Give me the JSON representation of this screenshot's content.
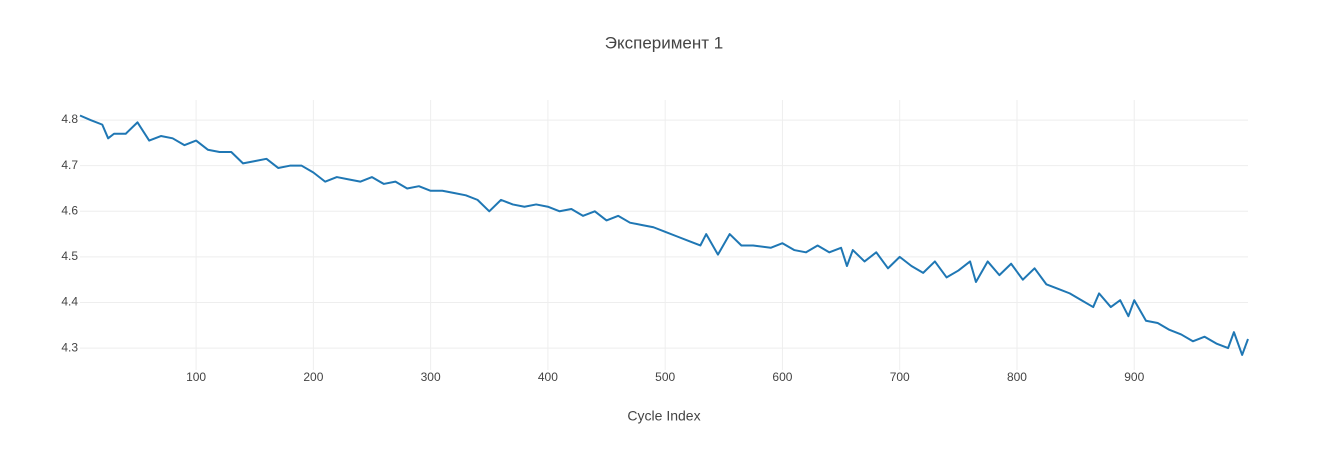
{
  "chart_data": {
    "type": "line",
    "title": "Эксперимент 1",
    "x_label": "Cycle Index",
    "x": [
      1,
      10,
      20,
      25,
      30,
      40,
      50,
      60,
      70,
      80,
      90,
      100,
      110,
      120,
      130,
      140,
      150,
      160,
      170,
      180,
      190,
      200,
      210,
      220,
      230,
      240,
      250,
      260,
      270,
      280,
      290,
      300,
      310,
      320,
      330,
      340,
      350,
      360,
      370,
      380,
      390,
      400,
      410,
      420,
      430,
      440,
      450,
      460,
      470,
      480,
      490,
      500,
      510,
      520,
      530,
      535,
      545,
      555,
      565,
      575,
      590,
      600,
      610,
      620,
      630,
      640,
      650,
      655,
      660,
      670,
      680,
      690,
      700,
      710,
      720,
      730,
      740,
      750,
      760,
      765,
      775,
      785,
      795,
      805,
      815,
      825,
      835,
      845,
      855,
      865,
      870,
      880,
      888,
      895,
      900,
      910,
      920,
      930,
      940,
      950,
      960,
      970,
      980,
      985,
      992,
      997
    ],
    "series": [
      {
        "name": "Эксперимент 1",
        "color": "#1f77b4",
        "values": [
          4.81,
          4.8,
          4.79,
          4.76,
          4.77,
          4.77,
          4.795,
          4.755,
          4.765,
          4.76,
          4.745,
          4.755,
          4.735,
          4.73,
          4.73,
          4.705,
          4.71,
          4.715,
          4.695,
          4.7,
          4.7,
          4.685,
          4.665,
          4.675,
          4.67,
          4.665,
          4.675,
          4.66,
          4.665,
          4.65,
          4.655,
          4.645,
          4.645,
          4.64,
          4.635,
          4.625,
          4.6,
          4.625,
          4.615,
          4.61,
          4.615,
          4.61,
          4.6,
          4.605,
          4.59,
          4.6,
          4.58,
          4.59,
          4.575,
          4.57,
          4.565,
          4.555,
          4.545,
          4.535,
          4.525,
          4.55,
          4.505,
          4.55,
          4.525,
          4.525,
          4.52,
          4.53,
          4.515,
          4.51,
          4.525,
          4.51,
          4.52,
          4.48,
          4.515,
          4.49,
          4.51,
          4.475,
          4.5,
          4.48,
          4.465,
          4.49,
          4.455,
          4.47,
          4.49,
          4.445,
          4.49,
          4.46,
          4.485,
          4.45,
          4.475,
          4.44,
          4.43,
          4.42,
          4.405,
          4.39,
          4.42,
          4.39,
          4.405,
          4.37,
          4.405,
          4.36,
          4.355,
          4.34,
          4.33,
          4.315,
          4.325,
          4.31,
          4.3,
          4.335,
          4.285,
          4.32
        ]
      }
    ],
    "xlim": [
      1,
      997
    ],
    "ylim": [
      4.252,
      4.844
    ],
    "xticks": [
      100,
      200,
      300,
      400,
      500,
      600,
      700,
      800,
      900
    ],
    "yticks": [
      4.3,
      4.4,
      4.5,
      4.6,
      4.7,
      4.8
    ],
    "grid": true
  }
}
